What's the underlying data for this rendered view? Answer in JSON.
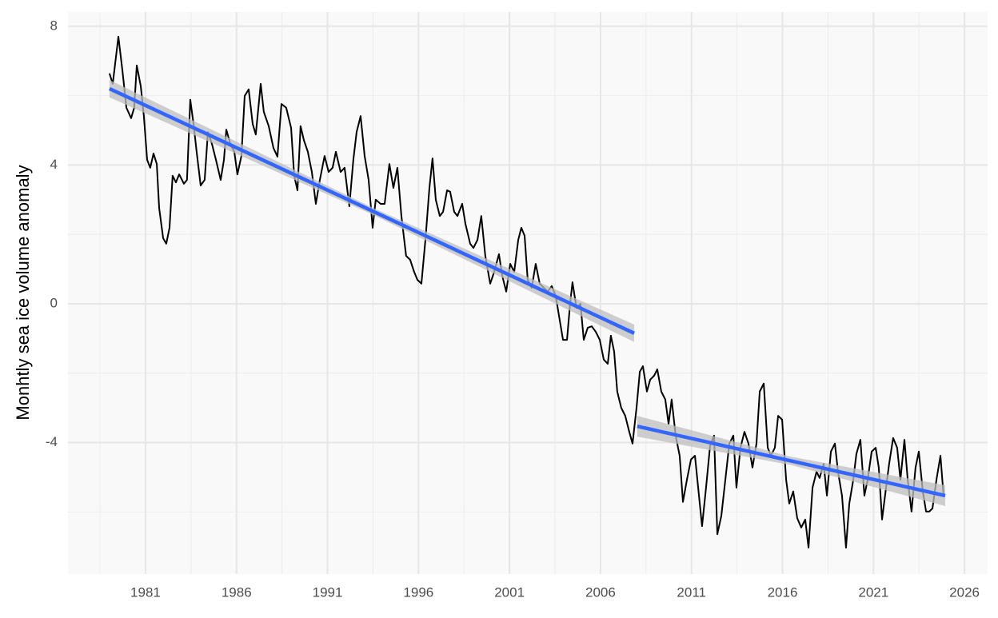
{
  "chart_data": {
    "type": "line",
    "ylabel": "Monhtly sea ice volume anomaly",
    "x": [
      1979.02,
      1979.2,
      1979.51,
      1979.73,
      1979.95,
      1980.21,
      1980.38,
      1980.52,
      1980.74,
      1980.91,
      1981.09,
      1981.26,
      1981.44,
      1981.62,
      1981.75,
      1981.97,
      1982.14,
      1982.32,
      1982.49,
      1982.67,
      1982.85,
      1983.11,
      1983.28,
      1983.46,
      1983.64,
      1983.81,
      1984.03,
      1984.25,
      1984.43,
      1984.65,
      1984.87,
      1985.13,
      1985.31,
      1985.44,
      1985.66,
      1985.88,
      1986.05,
      1986.27,
      1986.45,
      1986.67,
      1986.89,
      1987.06,
      1987.33,
      1987.5,
      1987.77,
      1988.03,
      1988.25,
      1988.47,
      1988.73,
      1989.0,
      1989.17,
      1989.35,
      1989.52,
      1989.7,
      1989.92,
      1990.14,
      1990.36,
      1990.58,
      1990.84,
      1991.06,
      1991.28,
      1991.46,
      1991.72,
      1991.94,
      1992.2,
      1992.42,
      1992.6,
      1992.82,
      1993.04,
      1993.26,
      1993.48,
      1993.65,
      1993.92,
      1994.14,
      1994.4,
      1994.62,
      1994.84,
      1995.06,
      1995.32,
      1995.54,
      1995.76,
      1995.94,
      1996.16,
      1996.38,
      1996.6,
      1996.77,
      1996.95,
      1997.17,
      1997.35,
      1997.57,
      1997.74,
      1997.96,
      1998.14,
      1998.4,
      1998.58,
      1998.84,
      1999.02,
      1999.24,
      1999.45,
      1999.67,
      1999.94,
      2000.16,
      2000.42,
      2000.6,
      2000.82,
      2001.04,
      2001.26,
      2001.48,
      2001.65,
      2001.83,
      2002.0,
      2002.22,
      2002.44,
      2002.66,
      2002.88,
      2003.1,
      2003.32,
      2003.54,
      2003.72,
      2003.94,
      2004.16,
      2004.33,
      2004.46,
      2004.68,
      2004.9,
      2005.08,
      2005.3,
      2005.52,
      2005.74,
      2005.96,
      2006.18,
      2006.4,
      2006.57,
      2006.75,
      2006.92,
      2007.14,
      2007.36,
      2007.58,
      2007.76,
      2007.98,
      2008.16,
      2008.33,
      2008.55,
      2008.73,
      2008.95,
      2009.12,
      2009.34,
      2009.56,
      2009.74,
      2009.91,
      2010.13,
      2010.35,
      2010.53,
      2010.75,
      2010.97,
      2011.19,
      2011.41,
      2011.58,
      2011.8,
      2012.02,
      2012.24,
      2012.42,
      2012.64,
      2012.86,
      2013.08,
      2013.3,
      2013.47,
      2013.69,
      2013.91,
      2014.13,
      2014.35,
      2014.57,
      2014.75,
      2014.97,
      2015.19,
      2015.36,
      2015.58,
      2015.76,
      2015.98,
      2016.2,
      2016.37,
      2016.59,
      2016.81,
      2017.03,
      2017.25,
      2017.43,
      2017.65,
      2017.87,
      2018.04,
      2018.26,
      2018.44,
      2018.66,
      2018.88,
      2019.05,
      2019.27,
      2019.49,
      2019.67,
      2019.89,
      2020.06,
      2020.28,
      2020.5,
      2020.68,
      2020.9,
      2021.12,
      2021.29,
      2021.47,
      2021.69,
      2021.86,
      2022.08,
      2022.3,
      2022.48,
      2022.7,
      2022.88,
      2023.09,
      2023.31,
      2023.49,
      2023.71,
      2023.89,
      2024.06,
      2024.24,
      2024.46,
      2024.68,
      2024.85
    ],
    "series": [
      {
        "color": "#000000",
        "values": [
          6.64,
          6.34,
          7.7,
          6.73,
          5.65,
          5.35,
          5.65,
          6.87,
          6.27,
          5.41,
          4.15,
          3.92,
          4.33,
          4.03,
          2.76,
          1.89,
          1.73,
          2.19,
          3.69,
          3.5,
          3.73,
          3.46,
          3.57,
          5.88,
          5.18,
          4.38,
          3.41,
          3.57,
          4.95,
          4.61,
          4.15,
          3.57,
          4.15,
          5.02,
          4.61,
          4.38,
          3.73,
          4.26,
          5.99,
          6.18,
          5.18,
          4.88,
          6.34,
          5.53,
          5.12,
          4.49,
          4.24,
          5.76,
          5.65,
          5.07,
          3.69,
          3.27,
          5.12,
          4.72,
          4.38,
          3.8,
          2.88,
          3.57,
          4.26,
          3.8,
          3.92,
          4.38,
          3.8,
          3.92,
          2.81,
          4.15,
          4.95,
          5.41,
          4.26,
          3.57,
          2.19,
          3.0,
          2.88,
          2.88,
          4.03,
          3.34,
          3.92,
          2.53,
          1.38,
          1.27,
          0.92,
          0.69,
          0.58,
          1.84,
          3.34,
          4.19,
          3.0,
          2.53,
          2.65,
          3.27,
          3.23,
          2.65,
          2.53,
          2.88,
          2.3,
          1.73,
          1.61,
          1.84,
          2.53,
          1.38,
          0.58,
          0.92,
          1.43,
          0.81,
          0.35,
          1.15,
          0.92,
          1.84,
          2.19,
          1.96,
          0.69,
          0.46,
          1.15,
          0.58,
          0.46,
          0.35,
          0.51,
          0.23,
          -0.35,
          -1.04,
          -1.04,
          0,
          0.62,
          -0.12,
          0,
          -1.04,
          -0.69,
          -0.65,
          -0.81,
          -1.04,
          -1.61,
          -1.73,
          -0.92,
          -1.38,
          -2.53,
          -3.0,
          -3.23,
          -3.69,
          -4.03,
          -3.0,
          -1.96,
          -1.8,
          -2.53,
          -2.19,
          -2.07,
          -1.89,
          -2.53,
          -2.76,
          -3.46,
          -2.76,
          -3.8,
          -4.38,
          -5.71,
          -5.07,
          -4.49,
          -4.38,
          -5.53,
          -6.41,
          -5.3,
          -4.1,
          -3.8,
          -6.64,
          -6.11,
          -5.07,
          -4.03,
          -3.8,
          -5.3,
          -4.15,
          -3.69,
          -4.03,
          -4.72,
          -4.03,
          -2.53,
          -2.3,
          -4.15,
          -4.38,
          -4.15,
          -3.23,
          -3.34,
          -5.07,
          -5.76,
          -5.41,
          -6.18,
          -6.45,
          -6.22,
          -7.03,
          -5.3,
          -4.84,
          -5.02,
          -4.61,
          -5.53,
          -4.26,
          -4.03,
          -4.84,
          -5.53,
          -7.03,
          -5.76,
          -5.07,
          -4.33,
          -3.92,
          -5.53,
          -5.07,
          -4.26,
          -4.15,
          -4.72,
          -6.22,
          -5.3,
          -4.61,
          -3.87,
          -4.15,
          -5.07,
          -3.92,
          -5.07,
          -5.99,
          -4.72,
          -4.26,
          -5.41,
          -5.99,
          -5.99,
          -5.9,
          -5.07,
          -4.38,
          -5.53
        ]
      }
    ],
    "fits": [
      {
        "color": "#3366ff",
        "band_color": "#bdbdbd",
        "x": [
          1979.02,
          1993.44,
          2007.85
        ],
        "y": [
          6.2,
          2.68,
          -0.85
        ],
        "lower": [
          5.95,
          2.58,
          -1.1
        ],
        "upper": [
          6.45,
          2.78,
          -0.6
        ]
      },
      {
        "color": "#3366ff",
        "band_color": "#bdbdbd",
        "x": [
          2008.02,
          2016.48,
          2024.94
        ],
        "y": [
          -3.53,
          -4.53,
          -5.53
        ],
        "lower": [
          -3.83,
          -4.65,
          -5.83
        ],
        "upper": [
          -3.23,
          -4.41,
          -5.23
        ]
      }
    ],
    "xlim": [
      1976.74,
      2027.27
    ],
    "ylim": [
      -7.79,
      8.41
    ],
    "xticks": [
      1981,
      1986,
      1991,
      1996,
      2001,
      2006,
      2011,
      2016,
      2021,
      2026
    ],
    "yticks": [
      -4,
      0,
      4,
      8
    ],
    "grid": true
  }
}
